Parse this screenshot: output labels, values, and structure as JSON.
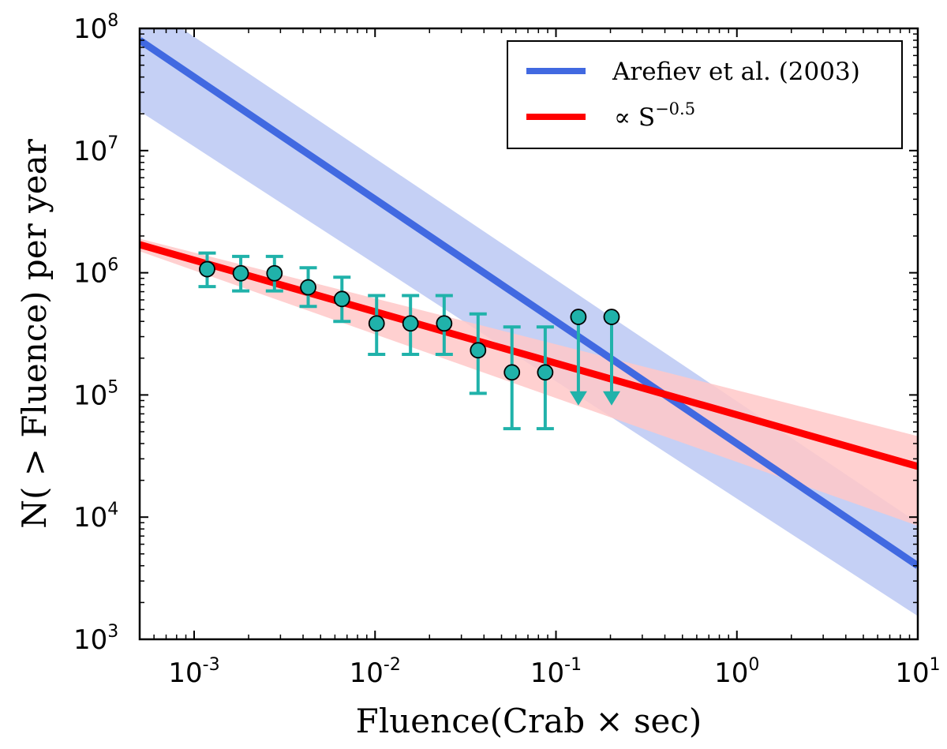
{
  "chart_data": {
    "type": "line",
    "xscale": "log",
    "yscale": "log",
    "xlim": [
      0.0005,
      10
    ],
    "ylim": [
      1000,
      100000000
    ],
    "xlabel": "Fluence(Crab × sec)",
    "ylabel": "N( > Fluence) per year",
    "x_ticks": [
      {
        "base": "10",
        "exp": "-3",
        "value": 0.001
      },
      {
        "base": "10",
        "exp": "-2",
        "value": 0.01
      },
      {
        "base": "10",
        "exp": "-1",
        "value": 0.1
      },
      {
        "base": "10",
        "exp": "0",
        "value": 1
      },
      {
        "base": "10",
        "exp": "1",
        "value": 10
      }
    ],
    "y_ticks": [
      {
        "base": "10",
        "exp": "3",
        "value": 1000
      },
      {
        "base": "10",
        "exp": "4",
        "value": 10000
      },
      {
        "base": "10",
        "exp": "5",
        "value": 100000
      },
      {
        "base": "10",
        "exp": "6",
        "value": 1000000
      },
      {
        "base": "10",
        "exp": "7",
        "value": 10000000
      },
      {
        "base": "10",
        "exp": "8",
        "value": 100000000
      }
    ],
    "legend": {
      "position": "top-right",
      "entries": [
        {
          "label": "Arefiev et al. (2003)",
          "color": "#4169e1"
        },
        {
          "label_prefix": "∝ S",
          "label_sup": "−0.5",
          "color": "#ff0000"
        }
      ]
    },
    "series": [
      {
        "name": "Arefiev et al. (2003)",
        "color": "#4169e1",
        "band_color": "#c5d0f5",
        "line": [
          [
            0.0005,
            80000000
          ],
          [
            10,
            4000
          ]
        ],
        "band_upper": [
          [
            0.0005,
            170000000
          ],
          [
            10,
            9000
          ]
        ],
        "band_lower": [
          [
            0.0005,
            21000000
          ],
          [
            10,
            1550
          ]
        ]
      },
      {
        "name": "∝ S^−0.5",
        "color": "#ff0000",
        "band_color": "#ffc8c8",
        "line": [
          [
            0.0005,
            1700000
          ],
          [
            10,
            26000
          ]
        ],
        "band_upper": [
          [
            0.0005,
            1900000
          ],
          [
            10,
            46000
          ]
        ],
        "band_lower": [
          [
            0.0005,
            1500000
          ],
          [
            10,
            8500
          ]
        ]
      }
    ],
    "data_points": {
      "color": "#20b2aa",
      "points": [
        {
          "x": 0.00118,
          "y": 1070000,
          "err_low": 770000,
          "err_high": 1450000
        },
        {
          "x": 0.00181,
          "y": 990000,
          "err_low": 710000,
          "err_high": 1360000
        },
        {
          "x": 0.00278,
          "y": 990000,
          "err_low": 710000,
          "err_high": 1360000
        },
        {
          "x": 0.00427,
          "y": 760000,
          "err_low": 530000,
          "err_high": 1100000
        },
        {
          "x": 0.00656,
          "y": 610000,
          "err_low": 400000,
          "err_high": 920000
        },
        {
          "x": 0.0102,
          "y": 385000,
          "err_low": 215000,
          "err_high": 650000
        },
        {
          "x": 0.0157,
          "y": 385000,
          "err_low": 215000,
          "err_high": 650000
        },
        {
          "x": 0.0241,
          "y": 385000,
          "err_low": 215000,
          "err_high": 650000
        },
        {
          "x": 0.0371,
          "y": 232000,
          "err_low": 103000,
          "err_high": 460000
        },
        {
          "x": 0.0571,
          "y": 153000,
          "err_low": 53000,
          "err_high": 360000
        },
        {
          "x": 0.0872,
          "y": 153000,
          "err_low": 53000,
          "err_high": 360000
        },
        {
          "x": 0.133,
          "y": 435000,
          "upper_limit_to": 82000
        },
        {
          "x": 0.203,
          "y": 435000,
          "upper_limit_to": 82000
        }
      ]
    }
  }
}
